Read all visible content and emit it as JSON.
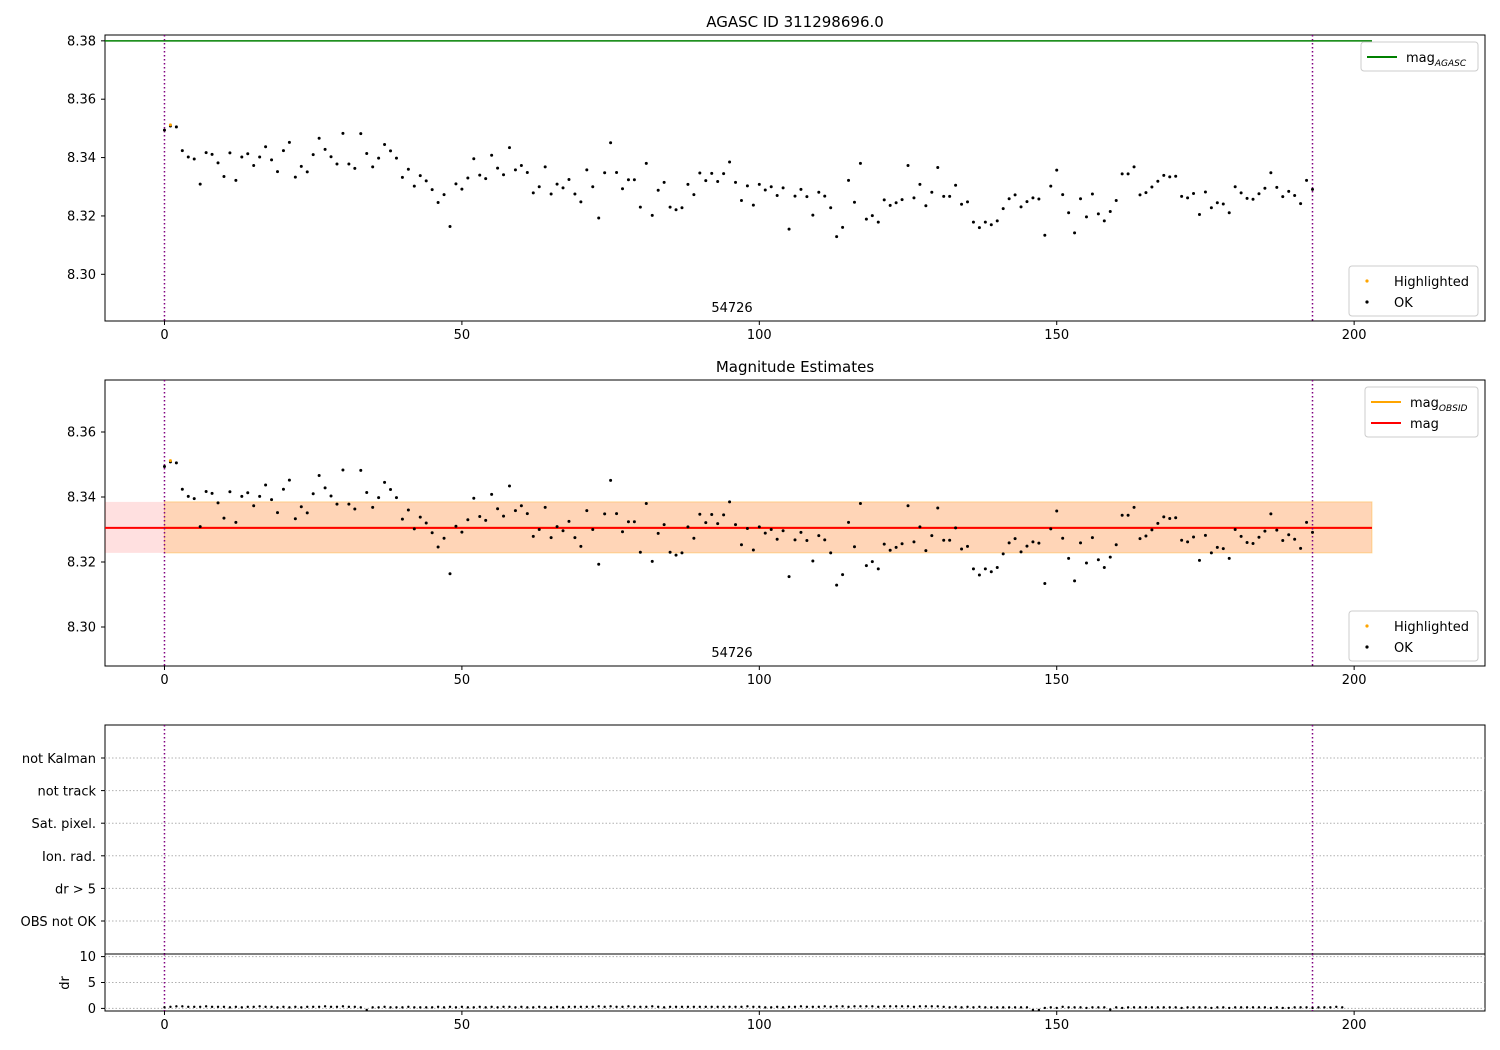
{
  "chart_data": [
    {
      "type": "scatter",
      "title": "AGASC ID 311298696.0",
      "xlim": [
        -10,
        222
      ],
      "ylim": [
        8.284,
        8.382
      ],
      "xticks": [
        0,
        50,
        100,
        150,
        200
      ],
      "yticks": [
        8.3,
        8.32,
        8.34,
        8.36,
        8.38
      ],
      "mag_agasc": 8.38,
      "obs_boundaries": [
        0,
        193
      ],
      "obs_label": "54726",
      "legend_top": [
        {
          "label": "mag",
          "sub": "AGASC",
          "color": "#008000",
          "kind": "line"
        }
      ],
      "legend_bottom": [
        {
          "label": "Highlighted",
          "color": "#ffa500",
          "kind": "dot"
        },
        {
          "label": "OK",
          "color": "#000000",
          "kind": "dot"
        }
      ]
    },
    {
      "type": "scatter",
      "title": "Magnitude Estimates",
      "xlim": [
        -10,
        222
      ],
      "ylim": [
        8.288,
        8.376
      ],
      "xticks": [
        0,
        50,
        100,
        150,
        200
      ],
      "yticks": [
        8.3,
        8.32,
        8.34,
        8.36
      ],
      "mag": 8.3305,
      "mag_band": [
        8.3228,
        8.3385
      ],
      "band_xrange": [
        -10,
        203
      ],
      "obs_band_xrange": [
        0,
        193
      ],
      "obs_boundaries": [
        0,
        193
      ],
      "obs_label": "54726",
      "legend_top": [
        {
          "label": "mag",
          "sub": "OBSID",
          "color": "#ffa500",
          "kind": "line"
        },
        {
          "label": "mag",
          "sub": "",
          "color": "#ff0000",
          "kind": "line"
        }
      ],
      "legend_bottom": [
        {
          "label": "Highlighted",
          "color": "#ffa500",
          "kind": "dot"
        },
        {
          "label": "OK",
          "color": "#000000",
          "kind": "dot"
        }
      ]
    },
    {
      "type": "scatter",
      "title": "",
      "flags": [
        "not Kalman",
        "not track",
        "Sat. pixel.",
        "Ion. rad.",
        "dr > 5",
        "OBS not OK"
      ],
      "xlim": [
        -10,
        222
      ],
      "obs_boundaries": [
        0,
        193
      ]
    },
    {
      "type": "scatter",
      "title": "",
      "ylabel": "dr",
      "xlim": [
        -10,
        222
      ],
      "ylim": [
        -0.5,
        10.5
      ],
      "xticks": [
        0,
        50,
        100,
        150,
        200
      ],
      "yticks": [
        0,
        5,
        10
      ],
      "obs_boundaries": [
        0,
        193
      ],
      "dr": [
        0.2,
        0.3,
        0.4,
        0.4,
        0.3,
        0.3,
        0.3,
        0.4,
        0.3,
        0.3,
        0.3,
        0.2,
        0.3,
        0.2,
        0.3,
        0.3,
        0.4,
        0.3,
        0.3,
        0.2,
        0.3,
        0.2,
        0.3,
        0.2,
        0.3,
        0.3,
        0.3,
        0.4,
        0.3,
        0.3,
        0.4,
        0.3,
        0.3,
        0.2,
        -0.3,
        0.2,
        0.2,
        0.3,
        0.2,
        0.2,
        0.2,
        0.3,
        0.2,
        0.2,
        0.2,
        0.2,
        0.3,
        0.2,
        0.3,
        0.2,
        0.3,
        0.2,
        0.2,
        0.3,
        0.2,
        0.3,
        0.2,
        0.3,
        0.3,
        0.2,
        0.3,
        0.2,
        0.2,
        0.3,
        0.2,
        0.2,
        0.3,
        0.2,
        0.3,
        0.3,
        0.3,
        0.3,
        0.3,
        0.4,
        0.3,
        0.4,
        0.3,
        0.3,
        0.4,
        0.3,
        0.3,
        0.3,
        0.4,
        0.3,
        0.2,
        0.3,
        0.3,
        0.3,
        0.3,
        0.3,
        0.3,
        0.3,
        0.3,
        0.3,
        0.3,
        0.3,
        0.3,
        0.3,
        0.4,
        0.3,
        0.3,
        0.2,
        0.2,
        0.3,
        0.2,
        0.3,
        0.3,
        0.4,
        0.3,
        0.3,
        0.3,
        0.4,
        0.3,
        0.4,
        0.4,
        0.3,
        0.4,
        0.4,
        0.4,
        0.4,
        0.3,
        0.4,
        0.4,
        0.4,
        0.4,
        0.4,
        0.3,
        0.4,
        0.4,
        0.4,
        0.4,
        0.3,
        0.2,
        0.3,
        0.2,
        0.3,
        0.2,
        0.3,
        0.2,
        0.2,
        0.2,
        0.2,
        0.2,
        0.2,
        0.2,
        0.2,
        -0.3,
        -0.3,
        0.1,
        0.2,
        0.1,
        0.3,
        0.2,
        0.2,
        0.2,
        0.1,
        0.2,
        0.2,
        0.2,
        -0.2,
        0.2,
        0.1,
        0.2,
        0.2,
        0.2,
        0.2,
        0.2,
        0.2,
        0.2,
        0.2,
        0.2,
        0.1,
        0.2,
        0.2,
        0.2,
        0.2,
        0.1,
        0.2,
        0.2,
        0.1,
        0.2,
        0.2,
        0.2,
        0.2,
        0.2,
        0.2,
        0.1,
        0.2,
        0.1,
        0.1,
        0.2,
        0.2,
        0.2,
        0.1,
        0.2,
        0.2,
        0.2,
        0.3,
        0.2
      ]
    }
  ],
  "shared": {
    "mag_series": [
      8.3494,
      8.3508,
      8.3505,
      8.3424,
      8.3402,
      8.3395,
      8.3309,
      8.3417,
      8.3411,
      8.3382,
      8.3335,
      8.3416,
      8.3322,
      8.3402,
      8.3413,
      8.3373,
      8.3402,
      8.3437,
      8.3392,
      8.3352,
      8.3424,
      8.3452,
      8.3333,
      8.337,
      8.3351,
      8.341,
      8.3466,
      8.3428,
      8.3403,
      8.3378,
      8.3483,
      8.3378,
      8.3363,
      8.3482,
      8.3414,
      8.3368,
      8.3398,
      8.3445,
      8.3423,
      8.3398,
      8.3332,
      8.336,
      8.3302,
      8.3338,
      8.332,
      8.329,
      8.3246,
      8.3273,
      8.3164,
      8.331,
      8.3292,
      8.333,
      8.3396,
      8.334,
      8.3328,
      8.3408,
      8.3364,
      8.3341,
      8.3434,
      8.3358,
      8.3373,
      8.3349,
      8.3279,
      8.33,
      8.3368,
      8.3275,
      8.3309,
      8.3296,
      8.3325,
      8.3275,
      8.3248,
      8.3358,
      8.33,
      8.3193,
      8.3348,
      8.3451,
      8.3349,
      8.3293,
      8.3324,
      8.3324,
      8.323,
      8.338,
      8.3202,
      8.3288,
      8.3315,
      8.323,
      8.3221,
      8.3228,
      8.3308,
      8.3273,
      8.3347,
      8.3321,
      8.3346,
      8.3318,
      8.3345,
      8.3385,
      8.3315,
      8.3253,
      8.3303,
      8.3237,
      8.3308,
      8.3289,
      8.33,
      8.327,
      8.3296,
      8.3155,
      8.3268,
      8.3291,
      8.3266,
      8.3203,
      8.3281,
      8.3268,
      8.3228,
      8.3129,
      8.3161,
      8.3322,
      8.3247,
      8.338,
      8.3189,
      8.3201,
      8.3179,
      8.3255,
      8.3236,
      8.3245,
      8.3256,
      8.3373,
      8.3262,
      8.3308,
      8.3235,
      8.3281,
      8.3366,
      8.3267,
      8.3267,
      8.3305,
      8.324,
      8.3248,
      8.3179,
      8.316,
      8.3179,
      8.317,
      8.3183,
      8.3225,
      8.3259,
      8.3272,
      8.3231,
      8.3249,
      8.3262,
      8.3258,
      8.3134,
      8.3302,
      8.3357,
      8.3273,
      8.3211,
      8.3142,
      8.3259,
      8.3197,
      8.3275,
      8.3207,
      8.3183,
      8.3215,
      8.3253,
      8.3344,
      8.3344,
      8.3368,
      8.3272,
      8.328,
      8.3299,
      8.3319,
      8.3339,
      8.3334,
      8.3336,
      8.3267,
      8.3262,
      8.3277,
      8.3205,
      8.3282,
      8.3228,
      8.3245,
      8.3241,
      8.3211,
      8.33,
      8.3279,
      8.326,
      8.3257,
      8.3276,
      8.3295,
      8.3348,
      8.3298,
      8.3266,
      8.3284,
      8.327,
      8.3242,
      8.3322,
      8.3291
    ],
    "highlighted": [
      {
        "x": 1,
        "y": 8.3512
      }
    ]
  }
}
